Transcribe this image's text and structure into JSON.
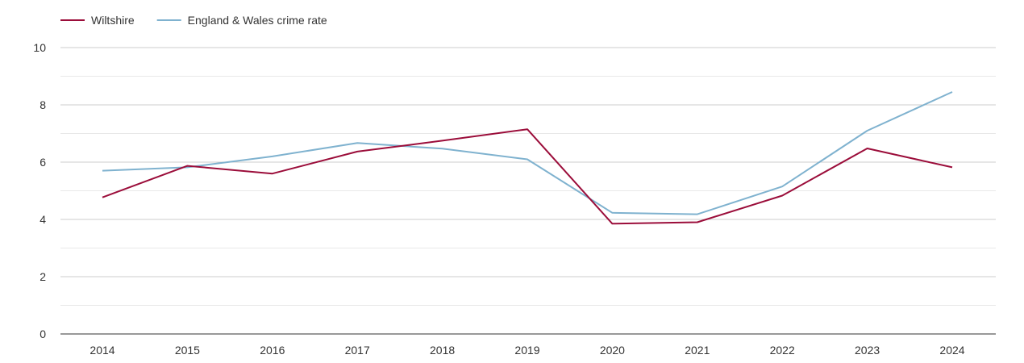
{
  "chart_data": {
    "type": "line",
    "title": "",
    "xlabel": "",
    "ylabel": "",
    "x": [
      "2014",
      "2015",
      "2016",
      "2017",
      "2018",
      "2019",
      "2020",
      "2021",
      "2022",
      "2023",
      "2024"
    ],
    "ylim": [
      0,
      10
    ],
    "yticks": [
      0,
      2,
      4,
      6,
      8,
      10
    ],
    "grid": true,
    "legend": "top-left",
    "series": [
      {
        "name": "Wiltshire",
        "color": "#9b0d3a",
        "values": [
          4.77,
          5.87,
          5.6,
          6.37,
          6.75,
          7.15,
          3.85,
          3.9,
          4.83,
          6.48,
          5.82
        ]
      },
      {
        "name": "England & Wales crime rate",
        "color": "#7fb2cf",
        "values": [
          5.7,
          5.82,
          6.2,
          6.67,
          6.47,
          6.1,
          4.23,
          4.18,
          5.15,
          7.1,
          8.45
        ]
      }
    ]
  }
}
